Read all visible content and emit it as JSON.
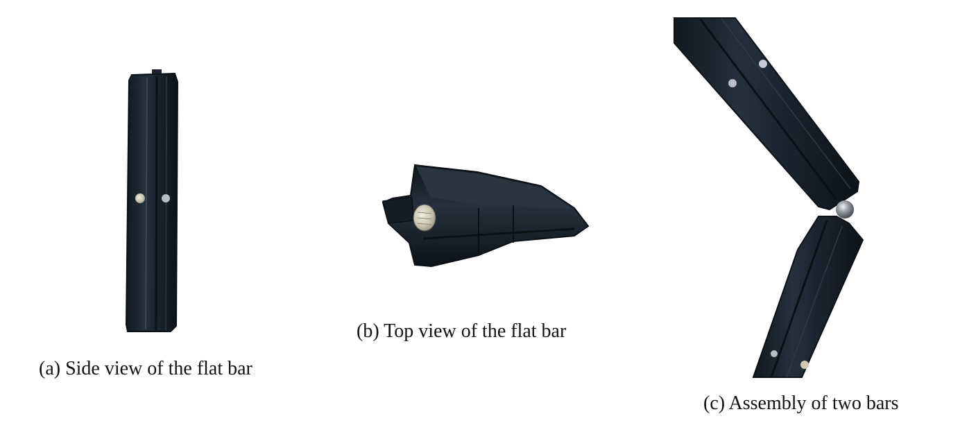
{
  "figure": {
    "panels": [
      {
        "id": "a",
        "caption": "(a) Side view of the flat bar"
      },
      {
        "id": "b",
        "caption": "(b) Top view of the flat bar"
      },
      {
        "id": "c",
        "caption": "(c) Assembly of two bars"
      }
    ]
  },
  "colors": {
    "background": "#ffffff",
    "bar_body": "#1a2430",
    "bar_edge": "#0d141c",
    "bar_highlight": "#3a4755",
    "magnet": "#c9c6b8",
    "magnet_hole": "#b8bcc8",
    "steel_ball": "#8a8f96"
  }
}
